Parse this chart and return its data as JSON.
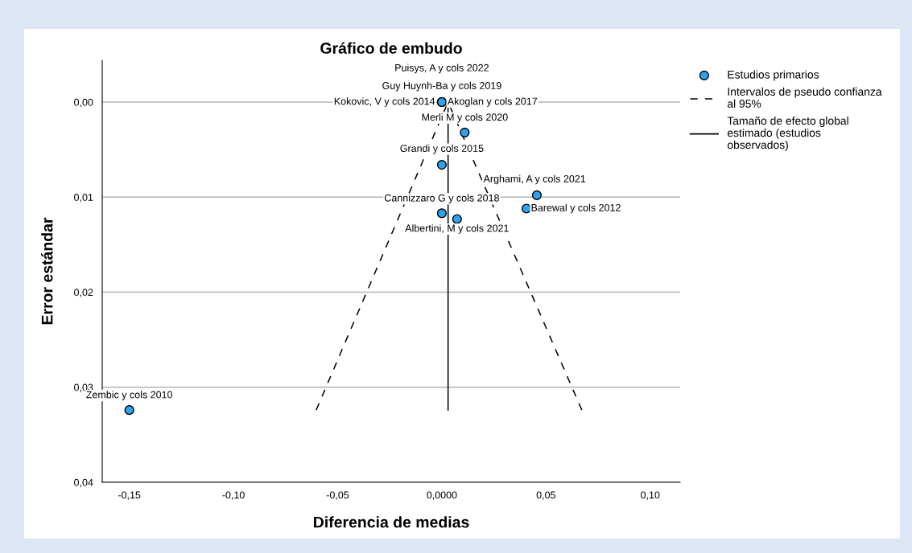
{
  "chart_data": {
    "type": "scatter",
    "title": "Gráfico de embudo",
    "xlabel": "Diferencia de medias",
    "ylabel": "Error estándar",
    "xlim": [
      -0.163,
      0.1144
    ],
    "ylim": [
      0.04,
      -0.0044
    ],
    "xticks": [
      {
        "value": -0.15,
        "label": "-0,15"
      },
      {
        "value": -0.1,
        "label": "-0,10"
      },
      {
        "value": -0.05,
        "label": "-0,05"
      },
      {
        "value": 0,
        "label": "0,0000"
      },
      {
        "value": 0.05,
        "label": "0,05"
      },
      {
        "value": 0.1,
        "label": "0,10"
      }
    ],
    "yticks": [
      {
        "value": 0,
        "label": "0,00"
      },
      {
        "value": 0.01,
        "label": "0,01"
      },
      {
        "value": 0.02,
        "label": "0,02"
      },
      {
        "value": 0.03,
        "label": "0,03"
      },
      {
        "value": 0.04,
        "label": "0,04"
      }
    ],
    "grid": "y",
    "legend": "top right",
    "series": [
      {
        "name": "Estudios primarios",
        "marker": "circle",
        "color": "#2ea3f2",
        "x": [
          0.0,
          0.0,
          0.0,
          0.0,
          0.011,
          0.0,
          0.0456,
          0.0406,
          0.0,
          0.0073,
          -0.15
        ],
        "values": [
          0.0,
          0.0,
          0.0,
          0.0,
          0.0032,
          0.0066,
          0.0098,
          0.0112,
          0.0117,
          0.0123,
          0.0324
        ]
      },
      {
        "name": "Intervalos de pseudo confianza\nal 95%",
        "type": "line",
        "line_style": "dashed",
        "color": "#000000",
        "x": [
          -0.0603,
          0.003
        ],
        "values": [
          0.0324,
          0.0
        ]
      },
      {
        "type": "line",
        "line_style": "dashed",
        "color": "#000000",
        "x": [
          0.0672,
          0.003
        ],
        "values": [
          0.0324,
          0.0
        ]
      },
      {
        "name": "Tamaño de efecto global\nestimado (estudios\nobservados)",
        "type": "line",
        "line_style": "solid",
        "color": "#000000",
        "x": [
          0.003,
          0.003
        ],
        "values": [
          0.0,
          0.0324
        ]
      }
    ],
    "annotations": [
      {
        "text": "Puisys, A y cols 2022",
        "x": 0.0,
        "y": 0.0
      },
      {
        "text": "Guy Huynh-Ba y cols 2019",
        "x": 0.0,
        "y": 0.0
      },
      {
        "text": "Kokovic, V y cols 2014",
        "x": 0.0,
        "y": 0.0
      },
      {
        "text": "Akoglan y cols 2017",
        "x": 0.0,
        "y": 0.0
      },
      {
        "text": "Merli M y cols 2020",
        "x": 0.011,
        "y": 0.0032
      },
      {
        "text": "Grandi y cols 2015",
        "x": 0.0,
        "y": 0.0066
      },
      {
        "text": "Arghami, A y cols 2021",
        "x": 0.0456,
        "y": 0.0098
      },
      {
        "text": "Barewal y cols 2012",
        "x": 0.0406,
        "y": 0.0112
      },
      {
        "text": "Cannizzaro G y cols 2018",
        "x": 0.0,
        "y": 0.0117
      },
      {
        "text": "Albertini, M y cols 2021",
        "x": 0.0073,
        "y": 0.0123
      },
      {
        "text": "Zembic y cols 2010",
        "x": -0.15,
        "y": 0.0324
      }
    ]
  }
}
